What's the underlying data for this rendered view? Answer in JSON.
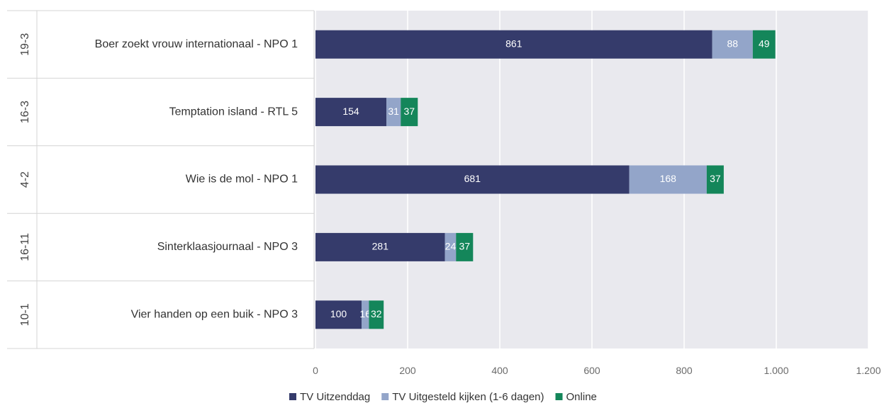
{
  "chart_data": {
    "type": "bar",
    "orientation": "horizontal",
    "stacked": true,
    "rows": [
      {
        "date": "19-3",
        "program": "Boer zoekt vrouw internationaal - NPO 1"
      },
      {
        "date": "16-3",
        "program": "Temptation island - RTL 5"
      },
      {
        "date": "4-2",
        "program": "Wie is de mol - NPO 1"
      },
      {
        "date": "16-11",
        "program": "Sinterklaasjournaal - NPO 3"
      },
      {
        "date": "10-1",
        "program": "Vier handen op een buik - NPO 3"
      }
    ],
    "series": [
      {
        "name": "TV Uitzenddag",
        "color": "#353b6b",
        "values": [
          861,
          154,
          681,
          281,
          100
        ]
      },
      {
        "name": "TV Uitgesteld kijken (1-6 dagen)",
        "color": "#93a5c9",
        "values": [
          88,
          31,
          168,
          24,
          16
        ]
      },
      {
        "name": "Online",
        "color": "#14865a",
        "values": [
          49,
          37,
          37,
          37,
          32
        ]
      }
    ],
    "x_ticks": [
      "0",
      "200",
      "400",
      "600",
      "800",
      "1.000",
      "1.200"
    ],
    "xlim": [
      0,
      1200
    ],
    "grid": true,
    "legend_position": "bottom"
  }
}
